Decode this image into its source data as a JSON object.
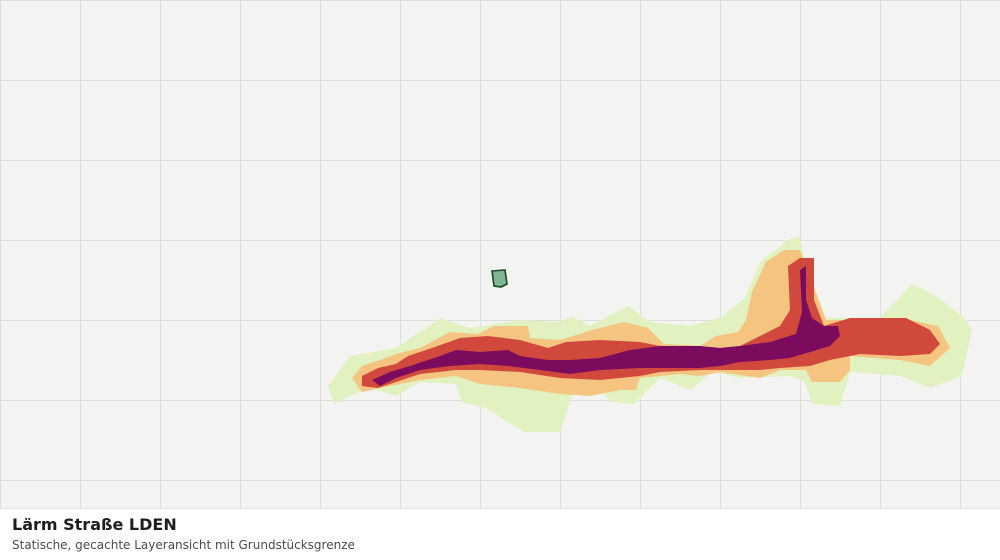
{
  "map": {
    "layer": "noise-road-lden",
    "background_color": "#f3f4f2",
    "grid_color": "#dcdedb",
    "noise_colors": {
      "lowest": "#e2f1c0",
      "low": "#f4c480",
      "medium": "#d1493d",
      "high": "#7b0b5d"
    },
    "parcel_color": "#7fb592",
    "parcel_border_color": "#1a4a2a"
  },
  "caption": {
    "title": "Lärm Straße LDEN",
    "subtitle": "Statische, gecachte Layeransicht mit Grundstücksgrenze"
  }
}
